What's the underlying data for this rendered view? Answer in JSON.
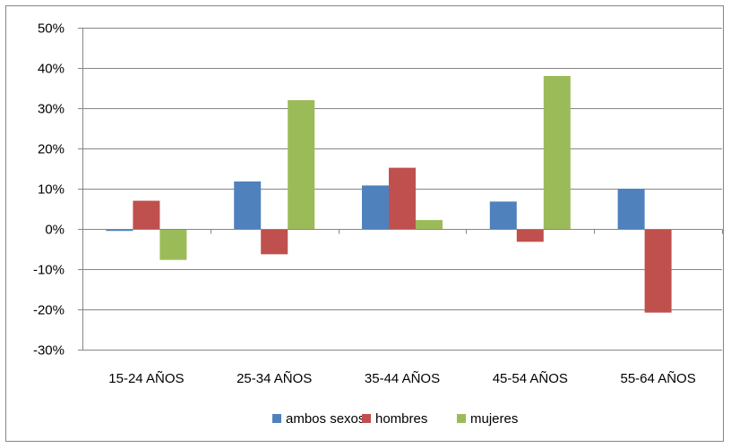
{
  "chart_data": {
    "type": "bar",
    "categories": [
      "15-24 AÑOS",
      "25-34 AÑOS",
      "35-44 AÑOS",
      "45-54 AÑOS",
      "55-64 AÑOS"
    ],
    "series": [
      {
        "name": "ambos sexos",
        "color": "#4F81BD",
        "values": [
          -0.5,
          11.8,
          10.8,
          6.8,
          10.0
        ]
      },
      {
        "name": "hombres",
        "color": "#C0504D",
        "values": [
          7.0,
          -6.3,
          15.2,
          -3.2,
          -20.8
        ]
      },
      {
        "name": "mujeres",
        "color": "#9BBB59",
        "values": [
          -7.7,
          32.0,
          2.2,
          38.0,
          null
        ]
      }
    ],
    "ylim": [
      -30,
      50
    ],
    "ytick_step": 10,
    "ytick_labels": [
      "50%",
      "40%",
      "30%",
      "20%",
      "10%",
      "0%",
      "-10%",
      "-20%",
      "-30%"
    ],
    "grid": true,
    "legend_position": "bottom",
    "title": "",
    "xlabel": "",
    "ylabel": ""
  }
}
